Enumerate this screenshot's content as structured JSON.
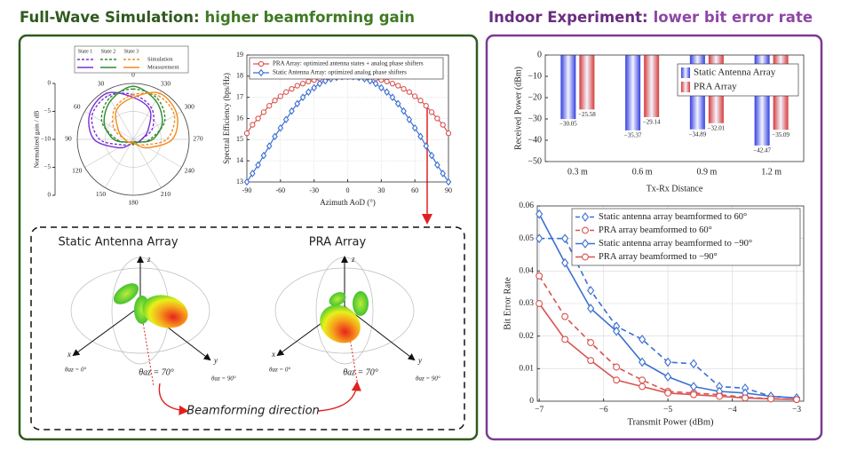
{
  "headers": {
    "left": {
      "bold": "Full-Wave Simulation:",
      "rest": "higher beamforming gain"
    },
    "right": {
      "bold": "Indoor Experiment:",
      "rest": "lower bit error rate"
    }
  },
  "beam_panels": {
    "left_title": "Static Antenna Array",
    "right_title": "PRA Array",
    "axes": [
      "z",
      "x",
      "y"
    ],
    "az0": "θaz = 0°",
    "az90": "θaz = 90°",
    "az70": "θaz = 70°",
    "direction": "Beamforming direction"
  },
  "chart_data": [
    {
      "type": "polar",
      "ylabel": "Normalized gain / dB",
      "legend_columns": [
        "State 1",
        "State 2",
        "State 3"
      ],
      "legend_rows": [
        "Simulation",
        "Measurement"
      ],
      "theta": [
        0,
        30,
        60,
        90,
        120,
        150,
        180,
        210,
        240,
        270,
        300,
        330
      ],
      "thetaticks": [
        0,
        30,
        60,
        90,
        120,
        150,
        180,
        210,
        240,
        270,
        300,
        330
      ],
      "rlim": [
        -10,
        0
      ],
      "rticks": [
        0,
        {
          "value": -5,
          "label": "−5"
        },
        {
          "value": -10,
          "label": "−10"
        }
      ],
      "series": [
        {
          "name": "State 1",
          "style": "Simulation",
          "dash": true,
          "color": "#7b2fd6",
          "values": [
            -2,
            -1,
            -1.5,
            -4,
            -8,
            -9,
            -9.5,
            -9,
            -9,
            -8.5,
            -6,
            -3.5
          ]
        },
        {
          "name": "State 1",
          "style": "Measurement",
          "dash": false,
          "color": "#7b2fd6",
          "values": [
            -2.5,
            -0.5,
            -1,
            -3,
            -7,
            -9,
            -9.5,
            -9.5,
            -9,
            -8.5,
            -7,
            -4
          ]
        },
        {
          "name": "State 2",
          "style": "Simulation",
          "dash": true,
          "color": "#2e8b2e",
          "values": [
            -1,
            -1.5,
            -3.5,
            -7,
            -9,
            -9.5,
            -9.5,
            -9.5,
            -9,
            -7,
            -3.5,
            -1.5
          ]
        },
        {
          "name": "State 2",
          "style": "Measurement",
          "dash": false,
          "color": "#2e8b2e",
          "values": [
            -0.5,
            -2,
            -4,
            -6.5,
            -9,
            -9.5,
            -9,
            -9.5,
            -9,
            -6.5,
            -4,
            -2
          ]
        },
        {
          "name": "State 3",
          "style": "Simulation",
          "dash": true,
          "color": "#f28c1e",
          "values": [
            -2,
            -3.5,
            -6,
            -8.5,
            -9,
            -9,
            -9.5,
            -9,
            -8,
            -4,
            -1.5,
            -1
          ]
        },
        {
          "name": "State 3",
          "style": "Measurement",
          "dash": false,
          "color": "#f28c1e",
          "values": [
            -2.5,
            -4,
            -7,
            -8.5,
            -9,
            -9.5,
            -9.5,
            -9,
            -7,
            -3,
            -1,
            -0.5
          ]
        }
      ]
    },
    {
      "type": "line",
      "xlabel": "Azimuth AoD (°)",
      "ylabel": "Spectral Efficiency (bps/Hz)",
      "x": [
        -90,
        -85,
        -80,
        -75,
        -70,
        -65,
        -60,
        -55,
        -50,
        -45,
        -40,
        -35,
        -30,
        -25,
        -20,
        -15,
        -10,
        -5,
        0,
        5,
        10,
        15,
        20,
        25,
        30,
        35,
        40,
        45,
        50,
        55,
        60,
        65,
        70,
        75,
        80,
        85,
        90
      ],
      "xlim": [
        -90,
        90
      ],
      "xticks": [
        -90,
        -60,
        -30,
        0,
        30,
        60,
        90
      ],
      "ylim": [
        13,
        19
      ],
      "yticks": [
        13,
        14,
        15,
        16,
        17,
        18,
        19
      ],
      "grid": true,
      "legend": "upper left",
      "series": [
        {
          "name": "PRA Array: optimized antenna states + analog phase shifters",
          "color": "#d9534f",
          "marker": "circle",
          "dash": false,
          "values": [
            15.3,
            15.7,
            16.0,
            16.3,
            16.6,
            16.85,
            17.05,
            17.25,
            17.4,
            17.55,
            17.65,
            17.75,
            17.82,
            17.88,
            17.92,
            17.95,
            17.97,
            17.98,
            18.0,
            17.98,
            17.97,
            17.95,
            17.92,
            17.88,
            17.82,
            17.75,
            17.65,
            17.55,
            17.4,
            17.25,
            17.05,
            16.85,
            16.6,
            16.3,
            16.0,
            15.7,
            15.3
          ]
        },
        {
          "name": "Static Antenna Array: optimized analog phase shifters",
          "color": "#3b6fd4",
          "marker": "diamond",
          "dash": false,
          "values": [
            13.0,
            13.4,
            13.8,
            14.25,
            14.7,
            15.15,
            15.55,
            15.95,
            16.35,
            16.7,
            17.0,
            17.25,
            17.45,
            17.65,
            17.78,
            17.88,
            17.94,
            17.98,
            18.0,
            17.98,
            17.94,
            17.88,
            17.78,
            17.65,
            17.45,
            17.25,
            17.0,
            16.7,
            16.35,
            15.95,
            15.55,
            15.15,
            14.7,
            14.25,
            13.8,
            13.4,
            13.0
          ]
        }
      ]
    },
    {
      "type": "bar",
      "xlabel": "Tx-Rx Distance",
      "ylabel": "Received Power (dBm)",
      "categories": [
        "0.3 m",
        "0.6 m",
        "0.9 m",
        "1.2 m"
      ],
      "ylim": [
        -50,
        0
      ],
      "yticks": [
        0,
        {
          "value": -10,
          "label": "−10"
        },
        {
          "value": -20,
          "label": "−20"
        },
        {
          "value": -30,
          "label": "−30"
        },
        {
          "value": -40,
          "label": "−40"
        },
        {
          "value": -50,
          "label": "−50"
        }
      ],
      "legend": "upper right",
      "series": [
        {
          "name": "Static Antenna Array",
          "color": "#3440e0",
          "values": [
            -30.05,
            -35.37,
            -34.89,
            -42.47
          ],
          "value_labels": [
            "−30.05",
            "−35.37",
            "−34.89",
            "−42.47"
          ]
        },
        {
          "name": "PRA Array",
          "color": "#d63a3a",
          "values": [
            -25.58,
            -29.14,
            -32.01,
            -35.09
          ],
          "value_labels": [
            "−25.58",
            "−29.14",
            "−32.01",
            "−35.09"
          ]
        }
      ]
    },
    {
      "type": "line",
      "xlabel": "Transmit Power (dBm)",
      "ylabel": "Bit Error Rate",
      "x": [
        -7,
        -6.6,
        -6.2,
        -5.8,
        -5.4,
        -5.0,
        -4.6,
        -4.2,
        -3.8,
        -3.4,
        -3.0
      ],
      "xlim": [
        -7.03,
        -2.89
      ],
      "xticks": [
        {
          "value": -7,
          "label": "−7"
        },
        {
          "value": -6,
          "label": "−6"
        },
        {
          "value": -5,
          "label": "−5"
        },
        {
          "value": -4,
          "label": "−4"
        },
        {
          "value": -3,
          "label": "−3"
        }
      ],
      "ylim": [
        0,
        0.06
      ],
      "yticks": [
        0,
        0.01,
        0.02,
        0.03,
        0.04,
        0.05,
        0.06
      ],
      "grid": true,
      "legend": "upper right",
      "series": [
        {
          "name": "Static antenna array beamformed to 60°",
          "color": "#3b6fd4",
          "marker": "diamond",
          "dash": true,
          "values": [
            0.05,
            0.05,
            0.034,
            0.023,
            0.019,
            0.012,
            0.0115,
            0.0045,
            0.004,
            0.0015,
            0.001
          ]
        },
        {
          "name": "PRA array beamformed to 60°",
          "color": "#d9534f",
          "marker": "circle",
          "dash": true,
          "values": [
            0.0385,
            0.026,
            0.018,
            0.0105,
            0.0065,
            0.003,
            0.0025,
            0.002,
            0.0012,
            0.0008,
            0.0005
          ]
        },
        {
          "name": "Static antenna array beamformed to −90°",
          "color": "#3b6fd4",
          "marker": "diamond",
          "dash": false,
          "values": [
            0.0575,
            0.0425,
            0.0285,
            0.0215,
            0.012,
            0.0075,
            0.0045,
            0.003,
            0.0025,
            0.0015,
            0.001
          ]
        },
        {
          "name": "PRA array beamformed to −90°",
          "color": "#d9534f",
          "marker": "circle",
          "dash": false,
          "values": [
            0.03,
            0.019,
            0.0125,
            0.0065,
            0.0045,
            0.0025,
            0.002,
            0.0015,
            0.001,
            0.0007,
            0.0005
          ]
        }
      ]
    }
  ]
}
